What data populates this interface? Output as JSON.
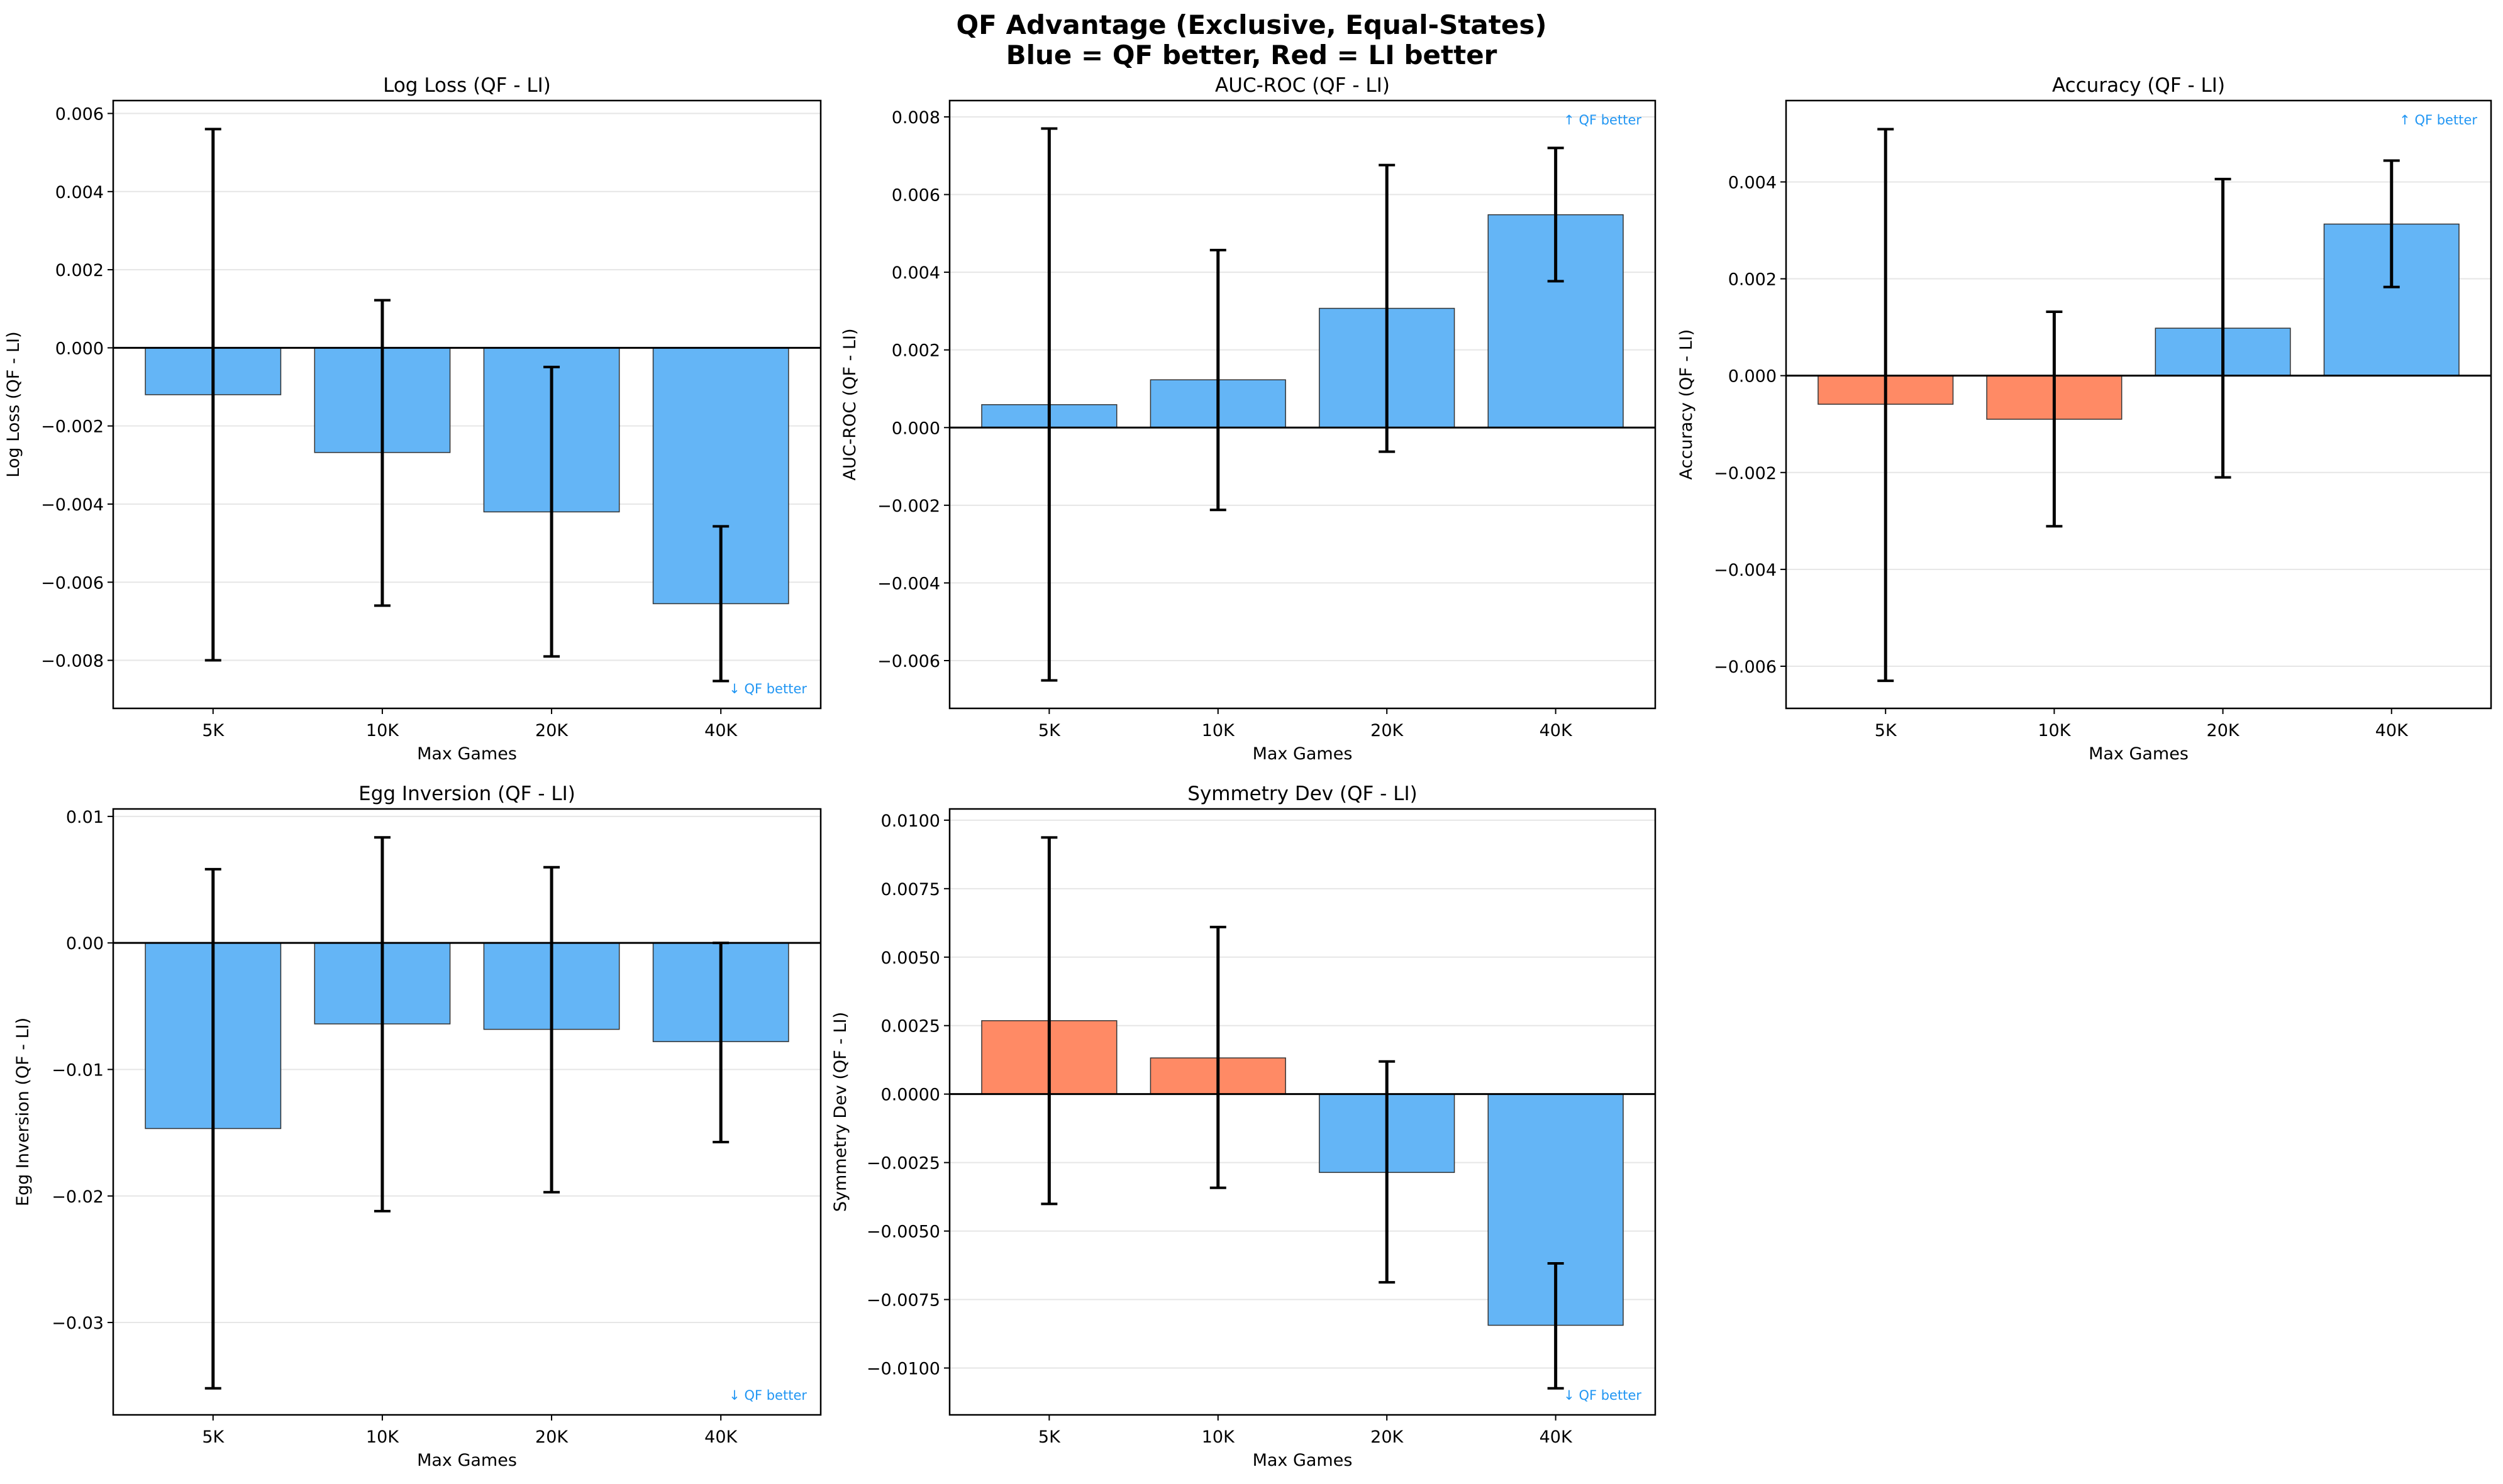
{
  "suptitle": [
    "QF Advantage (Exclusive, Equal-States)",
    "Blue = QF better, Red = LI better"
  ],
  "colors": {
    "qf_better": "#64B5F6",
    "li_better": "#FF8A65",
    "annotation": "#2196F3",
    "errorbar": "#000000",
    "grid": "#e6e6e6"
  },
  "chart_data": [
    {
      "type": "bar",
      "title": "Log Loss (QF - LI)",
      "xlabel": "Max Games",
      "ylabel": "Log Loss (QF - LI)",
      "categories": [
        "5K",
        "10K",
        "20K",
        "40K"
      ],
      "values": [
        -0.0012,
        -0.00268,
        -0.0042,
        -0.00655
      ],
      "err_high": [
        0.0056,
        0.00122,
        -0.00049,
        -0.00457
      ],
      "err_low": [
        -0.008,
        -0.0066,
        -0.0079,
        -0.00853
      ],
      "bar_colors": [
        "qf_better",
        "qf_better",
        "qf_better",
        "qf_better"
      ],
      "ylim": [
        -0.00923,
        0.00633
      ],
      "yticks": [
        -0.008,
        -0.006,
        -0.004,
        -0.002,
        0,
        0.002,
        0.004,
        0.006
      ],
      "ytick_labels": [
        "−0.008",
        "−0.006",
        "−0.004",
        "−0.002",
        "0.000",
        "0.002",
        "0.004",
        "0.006"
      ],
      "grid": "y",
      "annotation": "↓ QF better",
      "annotation_position": "bottom-right"
    },
    {
      "type": "bar",
      "title": "AUC-ROC (QF - LI)",
      "xlabel": "Max Games",
      "ylabel": "AUC-ROC (QF - LI)",
      "categories": [
        "5K",
        "10K",
        "20K",
        "40K"
      ],
      "values": [
        0.00059,
        0.00123,
        0.00307,
        0.00548
      ],
      "err_high": [
        0.0077,
        0.00457,
        0.00676,
        0.0072
      ],
      "err_low": [
        -0.00651,
        -0.00212,
        -0.00062,
        0.00377
      ],
      "bar_colors": [
        "qf_better",
        "qf_better",
        "qf_better",
        "qf_better"
      ],
      "ylim": [
        -0.00723,
        0.00842
      ],
      "yticks": [
        -0.006,
        -0.004,
        -0.002,
        0,
        0.002,
        0.004,
        0.006,
        0.008
      ],
      "ytick_labels": [
        "−0.006",
        "−0.004",
        "−0.002",
        "0.000",
        "0.002",
        "0.004",
        "0.006",
        "0.008"
      ],
      "grid": "y",
      "annotation": "↑ QF better",
      "annotation_position": "top-right"
    },
    {
      "type": "bar",
      "title": "Accuracy (QF - LI)",
      "xlabel": "Max Games",
      "ylabel": "Accuracy (QF - LI)",
      "categories": [
        "5K",
        "10K",
        "20K",
        "40K"
      ],
      "values": [
        -0.00059,
        -0.0009,
        0.00098,
        0.00313
      ],
      "err_high": [
        0.00509,
        0.00132,
        0.00406,
        0.00444
      ],
      "err_low": [
        -0.0063,
        -0.00311,
        -0.0021,
        0.00183
      ],
      "bar_colors": [
        "li_better",
        "li_better",
        "qf_better",
        "qf_better"
      ],
      "ylim": [
        -0.00687,
        0.00568
      ],
      "yticks": [
        -0.006,
        -0.004,
        -0.002,
        0,
        0.002,
        0.004
      ],
      "ytick_labels": [
        "−0.006",
        "−0.004",
        "−0.002",
        "0.000",
        "0.002",
        "0.004"
      ],
      "grid": "y",
      "annotation": "↑ QF better",
      "annotation_position": "top-right"
    },
    {
      "type": "bar",
      "title": "Egg Inversion (QF - LI)",
      "xlabel": "Max Games",
      "ylabel": "Egg Inversion (QF - LI)",
      "categories": [
        "5K",
        "10K",
        "20K",
        "40K"
      ],
      "values": [
        -0.01467,
        -0.0064,
        -0.00683,
        -0.0078
      ],
      "err_high": [
        0.00583,
        0.00834,
        0.00598,
        0.0
      ],
      "err_low": [
        -0.0352,
        -0.0212,
        -0.0197,
        -0.01574
      ],
      "bar_colors": [
        "qf_better",
        "qf_better",
        "qf_better",
        "qf_better"
      ],
      "ylim": [
        -0.0373,
        0.01059
      ],
      "yticks": [
        -0.03,
        -0.02,
        -0.01,
        0,
        0.01
      ],
      "ytick_labels": [
        "−0.03",
        "−0.02",
        "−0.01",
        "0.00",
        "0.01"
      ],
      "grid": "y",
      "annotation": "↓ QF better",
      "annotation_position": "bottom-right"
    },
    {
      "type": "bar",
      "title": "Symmetry Dev (QF - LI)",
      "xlabel": "Max Games",
      "ylabel": "Symmetry Dev (QF - LI)",
      "categories": [
        "5K",
        "10K",
        "20K",
        "40K"
      ],
      "values": [
        0.00268,
        0.00132,
        -0.00286,
        -0.00844
      ],
      "err_high": [
        0.00937,
        0.0061,
        0.00119,
        -0.00618
      ],
      "err_low": [
        -0.00401,
        -0.00342,
        -0.00687,
        -0.01074
      ],
      "bar_colors": [
        "li_better",
        "li_better",
        "qf_better",
        "qf_better"
      ],
      "ylim": [
        -0.01171,
        0.01041
      ],
      "yticks": [
        -0.01,
        -0.0075,
        -0.005,
        -0.0025,
        0,
        0.0025,
        0.005,
        0.0075,
        0.01
      ],
      "ytick_labels": [
        "−0.0100",
        "−0.0075",
        "−0.0050",
        "−0.0025",
        "0.0000",
        "0.0025",
        "0.0050",
        "0.0075",
        "0.0100"
      ],
      "grid": "y",
      "annotation": "↓ QF better",
      "annotation_position": "bottom-right"
    }
  ]
}
